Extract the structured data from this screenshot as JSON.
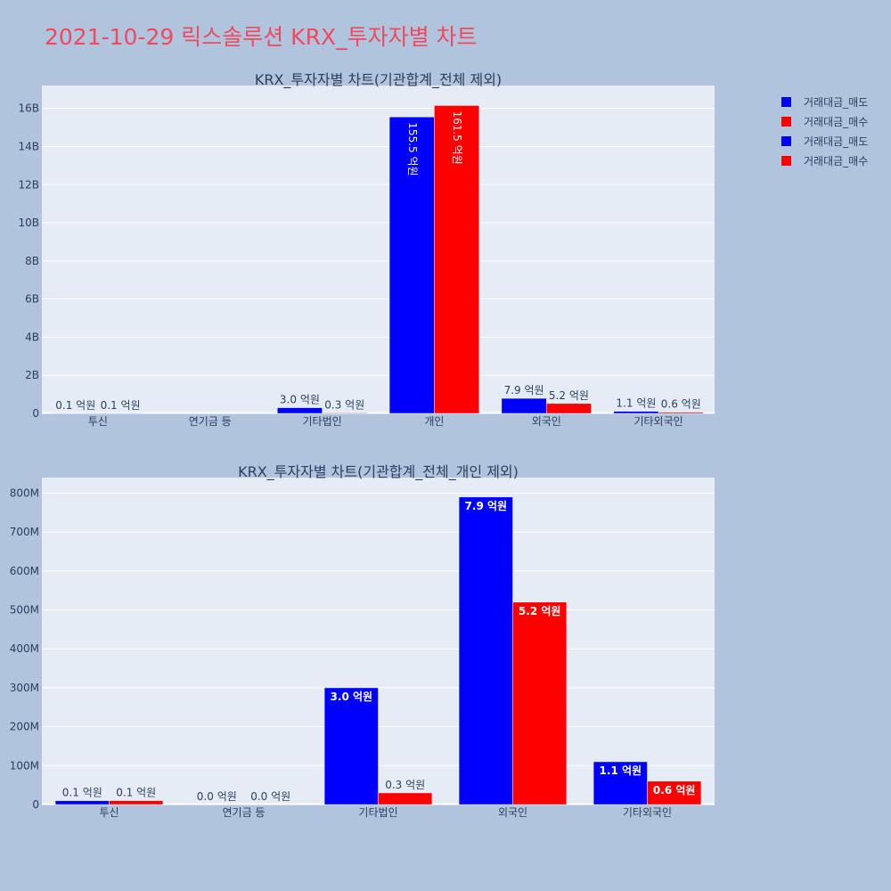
{
  "page": {
    "title": "2021-10-29 릭스솔루션 KRX_투자자별 차트"
  },
  "colors": {
    "sell": "#0000ff",
    "buy": "#ff0000",
    "plot_bg": "#e5ecf6",
    "paper_bg": "#b0c4de",
    "title": "#ef4a5e"
  },
  "legend": {
    "placement": "top-right",
    "items": [
      {
        "label": "거래대금_매도",
        "color": "#0000ff"
      },
      {
        "label": "거래대금_매수",
        "color": "#ff0000"
      },
      {
        "label": "거래대금_매도",
        "color": "#0000ff"
      },
      {
        "label": "거래대금_매수",
        "color": "#ff0000"
      }
    ]
  },
  "chart_data": [
    {
      "type": "bar",
      "title": "KRX_투자자별 차트(기관합계_전체 제외)",
      "categories": [
        "투신",
        "연기금 등",
        "기타법인",
        "개인",
        "외국인",
        "기타외국인"
      ],
      "ylim": [
        0,
        17200000000
      ],
      "yticks": [
        0,
        2000000000,
        4000000000,
        6000000000,
        8000000000,
        10000000000,
        12000000000,
        14000000000,
        16000000000
      ],
      "ytick_labels": [
        "0",
        "2B",
        "4B",
        "6B",
        "8B",
        "10B",
        "12B",
        "14B",
        "16B"
      ],
      "grid": true,
      "series": [
        {
          "name": "거래대금_매도",
          "color": "#0000ff",
          "values": [
            10000000,
            0,
            300000000,
            15550000000,
            790000000,
            110000000
          ],
          "labels": [
            "0.1 억원",
            "",
            "3.0 억원",
            "155.5 억원",
            "7.9 억원",
            "1.1 억원"
          ]
        },
        {
          "name": "거래대금_매수",
          "color": "#ff0000",
          "values": [
            10000000,
            0,
            30000000,
            16150000000,
            520000000,
            60000000
          ],
          "labels": [
            "0.1 억원",
            "",
            "0.3 억원",
            "161.5 억원",
            "5.2 억원",
            "0.6 억원"
          ]
        }
      ]
    },
    {
      "type": "bar",
      "title": "KRX_투자자별 차트(기관합계_전체_개인 제외)",
      "categories": [
        "투신",
        "연기금 등",
        "기타법인",
        "외국인",
        "기타외국인"
      ],
      "ylim": [
        0,
        840000000
      ],
      "yticks": [
        0,
        100000000,
        200000000,
        300000000,
        400000000,
        500000000,
        600000000,
        700000000,
        800000000
      ],
      "ytick_labels": [
        "0",
        "100M",
        "200M",
        "300M",
        "400M",
        "500M",
        "600M",
        "700M",
        "800M"
      ],
      "grid": true,
      "series": [
        {
          "name": "거래대금_매도",
          "color": "#0000ff",
          "values": [
            10000000,
            0,
            300000000,
            790000000,
            110000000
          ],
          "labels": [
            "0.1 억원",
            "0.0 억원",
            "3.0 억원",
            "7.9 억원",
            "1.1 억원"
          ]
        },
        {
          "name": "거래대금_매수",
          "color": "#ff0000",
          "values": [
            10000000,
            0,
            30000000,
            520000000,
            60000000
          ],
          "labels": [
            "0.1 억원",
            "0.0 억원",
            "0.3 억원",
            "5.2 억원",
            "0.6 억원"
          ]
        }
      ]
    }
  ]
}
